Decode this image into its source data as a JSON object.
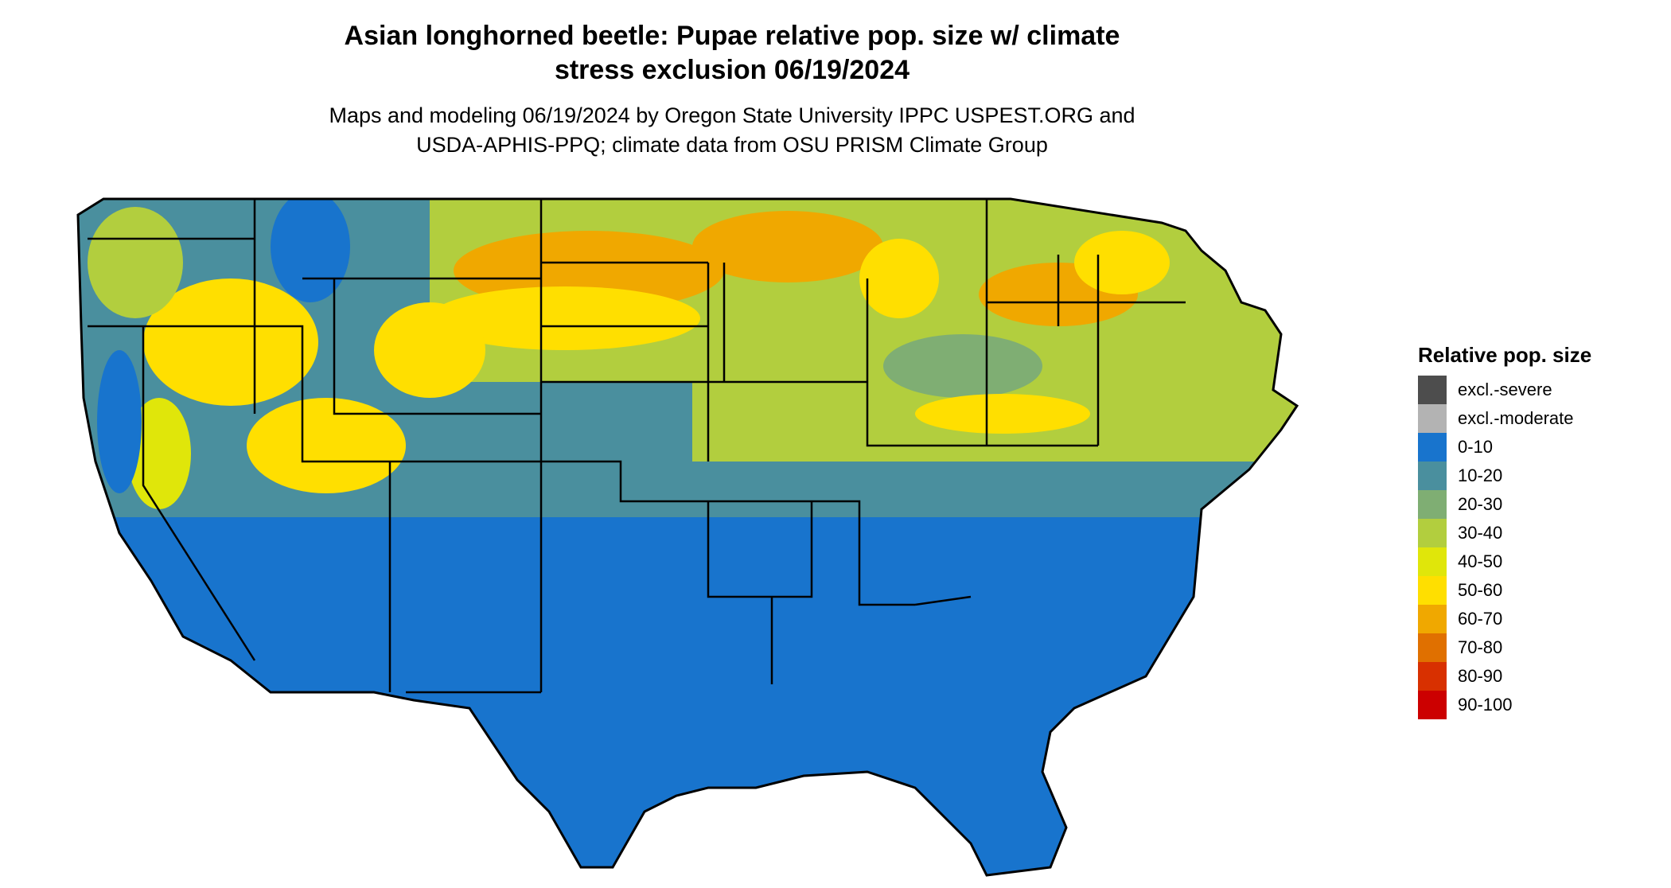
{
  "title": {
    "line1": "Asian longhorned beetle: Pupae relative pop. size w/ climate",
    "line2": "stress exclusion 06/19/2024"
  },
  "subtitle": {
    "line1": "Maps and modeling 06/19/2024 by Oregon State University IPPC USPEST.ORG and",
    "line2": "USDA-APHIS-PPQ; climate data from OSU PRISM Climate Group"
  },
  "legend": {
    "title": "Relative pop. size",
    "items": [
      {
        "label": "excl.-severe",
        "color": "#4d4d4d"
      },
      {
        "label": "excl.-moderate",
        "color": "#b3b3b3"
      },
      {
        "label": "0-10",
        "color": "#1874cd"
      },
      {
        "label": "10-20",
        "color": "#4a8f9e"
      },
      {
        "label": "20-30",
        "color": "#7fae73"
      },
      {
        "label": "30-40",
        "color": "#b2ce3e"
      },
      {
        "label": "40-50",
        "color": "#e0e60a"
      },
      {
        "label": "50-60",
        "color": "#ffdf00"
      },
      {
        "label": "60-70",
        "color": "#f0a800"
      },
      {
        "label": "70-80",
        "color": "#e07000"
      },
      {
        "label": "80-90",
        "color": "#d83000"
      },
      {
        "label": "90-100",
        "color": "#cc0000"
      }
    ]
  }
}
